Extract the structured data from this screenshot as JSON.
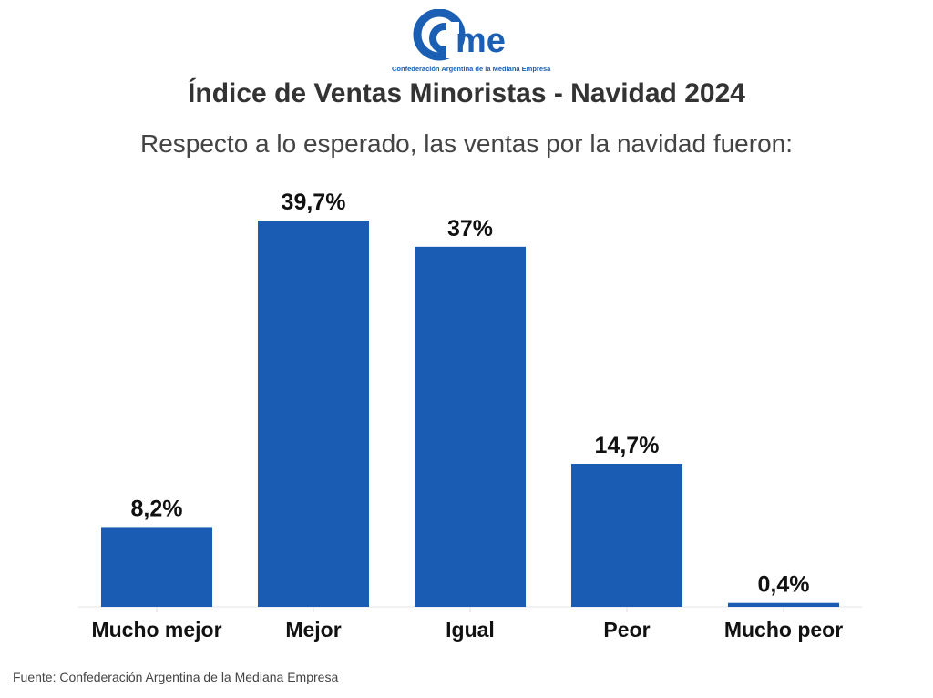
{
  "logo": {
    "text": "me",
    "subtitle": "Confederación Argentina de la Mediana Empresa"
  },
  "header": {
    "title": "Índice de Ventas Minoristas - Navidad 2024",
    "subtitle": "Respecto a lo esperado, las ventas por la navidad fueron:"
  },
  "chart_data": {
    "type": "bar",
    "title": "Índice de Ventas Minoristas - Navidad 2024",
    "subtitle": "Respecto a lo esperado, las ventas por la navidad fueron:",
    "categories": [
      "Mucho mejor",
      "Mejor",
      "Igual",
      "Peor",
      "Mucho peor"
    ],
    "values": [
      8.2,
      39.7,
      37,
      14.7,
      0.4
    ],
    "data_labels": [
      "8,2%",
      "39,7%",
      "37%",
      "14,7%",
      "0,4%"
    ],
    "unit": "%",
    "ylim": [
      0,
      39.7
    ],
    "grid": false,
    "bar_color": "#1a5cb4"
  },
  "footer": {
    "source": "Fuente: Confederación Argentina de la Mediana Empresa"
  }
}
